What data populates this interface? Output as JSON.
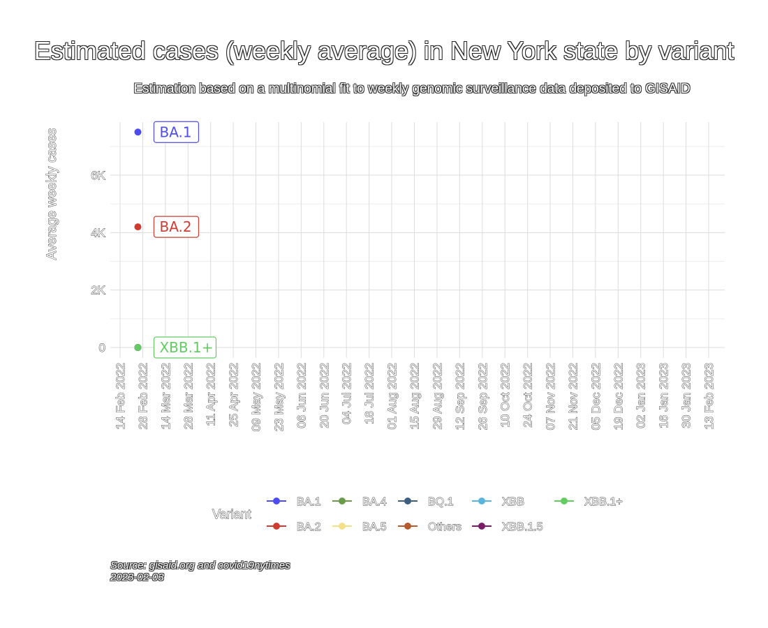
{
  "chart_data": {
    "type": "scatter",
    "title": "Estimated cases (weekly average) in New York state by variant",
    "subtitle": "Estimation based on a multinomial fit to weekly genomic surveillance data deposited to GISAID",
    "xlabel": "",
    "ylabel": "Average weekly cases",
    "x_tick_labels": [
      "14 Feb 2022",
      "28 Feb 2022",
      "14 Mar 2022",
      "28 Mar 2022",
      "11 Apr 2022",
      "25 Apr 2022",
      "09 May 2022",
      "23 May 2022",
      "06 Jun 2022",
      "20 Jun 2022",
      "04 Jul 2022",
      "18 Jul 2022",
      "01 Aug 2022",
      "15 Aug 2022",
      "29 Aug 2022",
      "12 Sep 2022",
      "26 Sep 2022",
      "10 Oct 2022",
      "24 Oct 2022",
      "07 Nov 2022",
      "21 Nov 2022",
      "05 Dec 2022",
      "19 Dec 2022",
      "02 Jan 2023",
      "16 Jan 2023",
      "30 Jan 2023",
      "13 Feb 2023"
    ],
    "y_tick_labels": [
      "0",
      "2K",
      "4K",
      "6K"
    ],
    "y_ticks": [
      0,
      2000,
      4000,
      6000
    ],
    "ylim": [
      -300,
      7850
    ],
    "grid": true,
    "legend_position": "bottom",
    "legend_title": "Variant",
    "series": [
      {
        "name": "BA.1",
        "color": "#4c4cf0",
        "points": [
          {
            "x": "2022-02-25",
            "y": 7500
          }
        ],
        "label": "BA.1"
      },
      {
        "name": "BA.2",
        "color": "#cf3b30",
        "points": [
          {
            "x": "2022-02-25",
            "y": 4200
          }
        ],
        "label": "BA.2"
      },
      {
        "name": "BA.4",
        "color": "#6a9a4a",
        "points": [
          {
            "x": "2022-02-25",
            "y": 0
          }
        ]
      },
      {
        "name": "BA.5",
        "color": "#f2e08a",
        "points": [
          {
            "x": "2022-02-25",
            "y": 0
          }
        ]
      },
      {
        "name": "BQ.1",
        "color": "#3e5f7e",
        "points": [
          {
            "x": "2022-02-25",
            "y": 0
          }
        ]
      },
      {
        "name": "Others",
        "color": "#b45a2e",
        "points": [
          {
            "x": "2022-02-25",
            "y": 0
          }
        ]
      },
      {
        "name": "XBB",
        "color": "#5ab4e0",
        "points": [
          {
            "x": "2022-02-25",
            "y": 0
          }
        ]
      },
      {
        "name": "XBB.1.5",
        "color": "#7a1c66",
        "points": [
          {
            "x": "2022-02-25",
            "y": 0
          }
        ]
      },
      {
        "name": "XBB.1+",
        "color": "#62cc62",
        "points": [
          {
            "x": "2022-02-25",
            "y": 0
          }
        ],
        "label": "XBB.1+"
      }
    ],
    "legend_order": [
      "BA.1",
      "BA.4",
      "BQ.1",
      "XBB",
      "XBB.1+",
      "BA.2",
      "BA.5",
      "Others",
      "XBB.1.5"
    ],
    "source": "Source: gisaid.org and covid19nytimes",
    "date": "2023-02-03"
  }
}
